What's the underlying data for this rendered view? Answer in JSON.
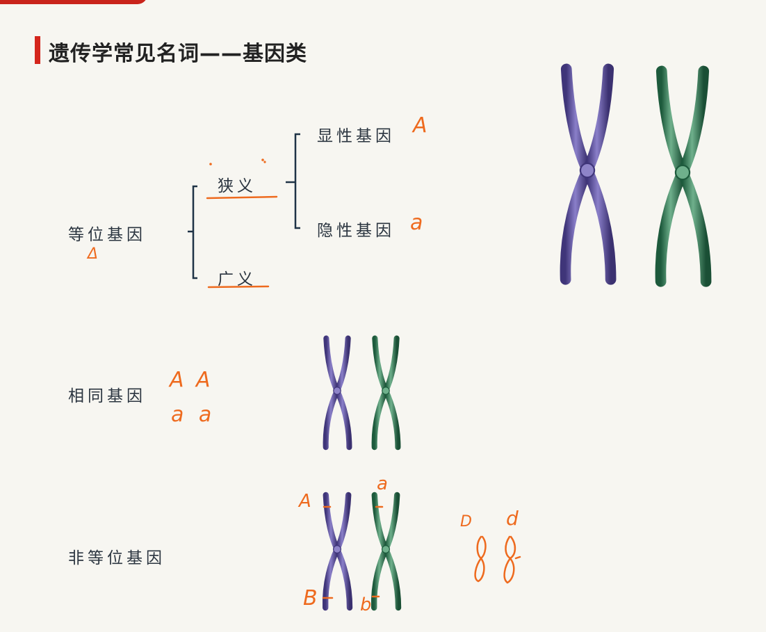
{
  "slide": {
    "title": "遗传学常见名词——基因类",
    "concepts": {
      "allele": "等位基因",
      "narrow_sense": "狭义",
      "broad_sense": "广义",
      "dominant_gene": "显性基因",
      "recessive_gene": "隐性基因",
      "same_gene": "相同基因",
      "non_allele": "非等位基因"
    }
  },
  "annotations": {
    "dominant_mark": "A",
    "recessive_mark": "a",
    "allele_mark": "Δ",
    "same_row1": "A A",
    "same_row2": "a a",
    "nonallele_A": "A",
    "nonallele_a": "a",
    "nonallele_B": "B",
    "nonallele_b": "b",
    "sketch_D": "D",
    "sketch_d": "d"
  },
  "colors": {
    "accent_red": "#d4261c",
    "annotation_orange": "#ee6a1e",
    "bracket_navy": "#1f3346",
    "chromosome_purple": "#5a4d9c",
    "chromosome_green": "#2e7a55"
  }
}
